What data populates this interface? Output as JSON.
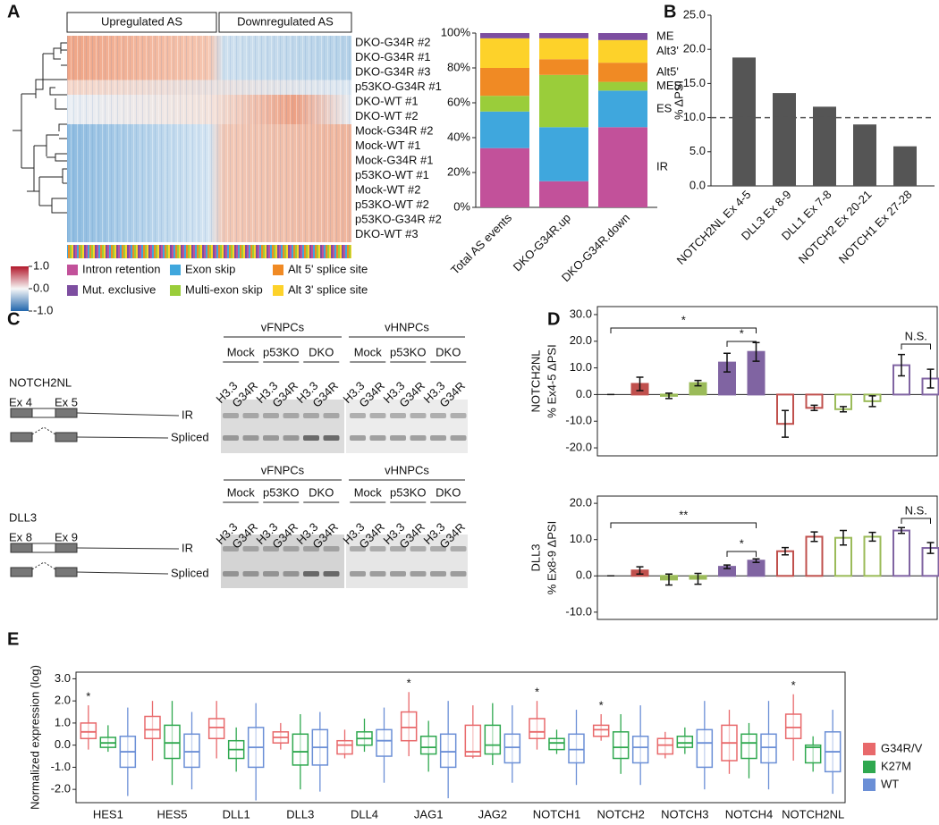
{
  "panel_labels": [
    "A",
    "B",
    "C",
    "D",
    "E"
  ],
  "heatmap": {
    "groups": [
      "Upregulated AS",
      "Downregulated AS"
    ],
    "rows": [
      "DKO-G34R #2",
      "DKO-G34R #1",
      "DKO-G34R #3",
      "p53KO-G34R #1",
      "DKO-WT #1",
      "DKO-WT #2",
      "Mock-G34R #2",
      "Mock-WT #1",
      "Mock-G34R #1",
      "p53KO-WT #1",
      "Mock-WT #2",
      "p53KO-WT #2",
      "p53KO-G34R #2",
      "DKO-WT #3"
    ],
    "colorbar_ticks": [
      {
        "value": 1,
        "label": "1.0"
      },
      {
        "value": 0,
        "label": "0.0"
      },
      {
        "value": -1,
        "label": "-1.0"
      }
    ],
    "legend": [
      {
        "name": "Intron retention",
        "color": "#c2519a"
      },
      {
        "name": "Exon skip",
        "color": "#3fa7dd"
      },
      {
        "name": "Alt 5' splice site",
        "color": "#f08a24"
      },
      {
        "name": "Mut. exclusive",
        "color": "#7d4ea0"
      },
      {
        "name": "Multi-exon skip",
        "color": "#9acd3a"
      },
      {
        "name": "Alt 3' splice site",
        "color": "#fdd22a"
      }
    ]
  },
  "gels": [
    {
      "gene": "NOTCH2NL",
      "exons": [
        "Ex 4",
        "Ex 5"
      ],
      "bands": [
        "IR",
        "Spliced"
      ],
      "cells": [
        "vFNPCs",
        "vHNPCs"
      ],
      "conditions": [
        "Mock",
        "p53KO",
        "DKO"
      ],
      "lanes": [
        "H3.3",
        "G34R"
      ]
    },
    {
      "gene": "DLL3",
      "exons": [
        "Ex 8",
        "Ex 9"
      ],
      "bands": [
        "IR",
        "Spliced"
      ],
      "cells": [
        "vFNPCs",
        "vHNPCs"
      ],
      "conditions": [
        "Mock",
        "p53KO",
        "DKO"
      ],
      "lanes": [
        "H3.3",
        "G34R"
      ]
    }
  ],
  "chart_data": [
    {
      "type": "bar",
      "stacked": true,
      "categories": [
        "Total AS events",
        "DKO-G34R.up",
        "DKO-G34R.down"
      ],
      "series": [
        {
          "name": "IR",
          "color": "#c2519a",
          "values": [
            34,
            15,
            46
          ]
        },
        {
          "name": "ES",
          "color": "#3fa7dd",
          "values": [
            21,
            31,
            21
          ]
        },
        {
          "name": "MES",
          "color": "#9acd3a",
          "values": [
            9,
            30,
            5
          ]
        },
        {
          "name": "Alt5'",
          "color": "#f08a24",
          "values": [
            16,
            9,
            11
          ]
        },
        {
          "name": "Alt3'",
          "color": "#fdd22a",
          "values": [
            17,
            12,
            13
          ]
        },
        {
          "name": "ME",
          "color": "#7d4ea0",
          "values": [
            3,
            3,
            4
          ]
        }
      ],
      "ylim": [
        0,
        100
      ],
      "yticks": [
        {
          "value": 0,
          "label": "0%"
        },
        {
          "value": 20,
          "label": "20%"
        },
        {
          "value": 40,
          "label": "40%"
        },
        {
          "value": 60,
          "label": "60%"
        },
        {
          "value": 80,
          "label": "80%"
        },
        {
          "value": 100,
          "label": "100%"
        }
      ]
    },
    {
      "type": "bar",
      "categories": [
        "NOTCH2NL Ex 4-5",
        "DLL3 Ex 8-9",
        "DLL1 Ex 7-8",
        "NOTCH2 Ex 20-21",
        "NOTCH1 Ex 27-28"
      ],
      "values": [
        18.8,
        13.6,
        11.6,
        9.0,
        5.8
      ],
      "color": "#555555",
      "ylim": [
        0,
        25
      ],
      "yticks": [
        {
          "value": 0,
          "label": "0.0"
        },
        {
          "value": 5,
          "label": "5.0"
        },
        {
          "value": 10,
          "label": "10.0"
        },
        {
          "value": 15,
          "label": "15.0"
        },
        {
          "value": 20,
          "label": "20.0"
        },
        {
          "value": 25,
          "label": "25.0"
        }
      ],
      "ylabel": "% ΔPSI",
      "reference_line": 10
    },
    {
      "type": "bar",
      "ylabel": [
        "NOTCH2NL",
        "% Ex4-5 ΔPSI"
      ],
      "values": [
        0,
        4,
        -0.5,
        4.3,
        12,
        16,
        -11,
        -5,
        -5.5,
        -2.5,
        11,
        6
      ],
      "errors": [
        0,
        2.5,
        1,
        1,
        3.5,
        3.5,
        5,
        1,
        1,
        2,
        4,
        3.5
      ],
      "colors": [
        "#c0504d",
        "#c0504d",
        "#9bbb59",
        "#9bbb59",
        "#8064a2",
        "#8064a2",
        "#c0504d",
        "#c0504d",
        "#9bbb59",
        "#9bbb59",
        "#8064a2",
        "#8064a2"
      ],
      "filled": [
        true,
        true,
        true,
        true,
        true,
        true,
        false,
        false,
        false,
        false,
        false,
        false
      ],
      "ylim": [
        -23,
        33
      ],
      "yticks": [
        {
          "value": -20,
          "label": "-20.0"
        },
        {
          "value": -10,
          "label": "-10.0"
        },
        {
          "value": 0,
          "label": "0.0"
        },
        {
          "value": 10,
          "label": "10.0"
        },
        {
          "value": 20,
          "label": "20.0"
        },
        {
          "value": 30,
          "label": "30.0"
        }
      ],
      "annotations": [
        "*",
        "*",
        "N.S."
      ]
    },
    {
      "type": "bar",
      "ylabel": [
        "DLL3",
        "% Ex8-9 ΔPSI"
      ],
      "values": [
        0,
        1.5,
        -1,
        -0.8,
        2.5,
        4.2,
        6.8,
        10.8,
        10.5,
        10.8,
        12.5,
        7.7
      ],
      "errors": [
        0,
        1,
        1.5,
        1.5,
        0.5,
        0.5,
        1,
        1.3,
        2,
        1.2,
        0.8,
        1.5
      ],
      "colors": [
        "#c0504d",
        "#c0504d",
        "#9bbb59",
        "#9bbb59",
        "#8064a2",
        "#8064a2",
        "#c0504d",
        "#c0504d",
        "#9bbb59",
        "#9bbb59",
        "#8064a2",
        "#8064a2"
      ],
      "filled": [
        true,
        true,
        true,
        true,
        true,
        true,
        false,
        false,
        false,
        false,
        false,
        false
      ],
      "ylim": [
        -12,
        22
      ],
      "yticks": [
        {
          "value": -10,
          "label": "-10.0"
        },
        {
          "value": 0,
          "label": "0.0"
        },
        {
          "value": 10,
          "label": "10.0"
        },
        {
          "value": 20,
          "label": "20.0"
        }
      ],
      "annotations": [
        "**",
        "*",
        "N.S."
      ]
    },
    {
      "type": "box",
      "ylabel": "Normalized expression (log)",
      "categories": [
        "HES1",
        "HES5",
        "DLL1",
        "DLL3",
        "DLL4",
        "JAG1",
        "JAG2",
        "NOTCH1",
        "NOTCH2",
        "NOTCH3",
        "NOTCH4",
        "NOTCH2NL"
      ],
      "significance": [
        "*",
        null,
        null,
        null,
        null,
        "*",
        null,
        "*",
        "*",
        null,
        null,
        "*"
      ],
      "series": [
        {
          "name": "G34R/V",
          "color": "#e8696b",
          "boxes": [
            [
              -0.2,
              0.3,
              0.6,
              1.0,
              1.8
            ],
            [
              -0.7,
              0.3,
              0.7,
              1.3,
              2.0
            ],
            [
              -0.6,
              0.3,
              0.8,
              1.2,
              2.0
            ],
            [
              -0.2,
              0.1,
              0.35,
              0.6,
              1.0
            ],
            [
              -0.6,
              -0.4,
              0.0,
              0.2,
              0.7
            ],
            [
              -0.5,
              0.2,
              0.8,
              1.5,
              2.4
            ],
            [
              -0.6,
              -0.5,
              -0.3,
              0.9,
              1.8
            ],
            [
              -0.2,
              0.3,
              0.6,
              1.2,
              2.0
            ],
            [
              0.2,
              0.4,
              0.7,
              0.9,
              1.4
            ],
            [
              -0.6,
              -0.4,
              0.0,
              0.3,
              0.6
            ],
            [
              -1.3,
              -0.7,
              0.1,
              0.9,
              1.6
            ],
            [
              -0.7,
              0.3,
              0.8,
              1.4,
              2.3
            ]
          ]
        },
        {
          "name": "K27M",
          "color": "#2fa84f",
          "boxes": [
            [
              -0.3,
              -0.1,
              0.1,
              0.35,
              0.9
            ],
            [
              -1.8,
              -0.6,
              0.1,
              0.9,
              2.0
            ],
            [
              -1.2,
              -0.6,
              -0.2,
              0.2,
              0.8
            ],
            [
              -2.0,
              -0.9,
              -0.3,
              0.5,
              1.4
            ],
            [
              -0.3,
              0.0,
              0.3,
              0.6,
              1.2
            ],
            [
              -1.2,
              -0.4,
              -0.1,
              0.4,
              1.1
            ],
            [
              -0.9,
              -0.4,
              0.0,
              0.9,
              1.9
            ],
            [
              -0.4,
              -0.2,
              0.1,
              0.3,
              0.7
            ],
            [
              -1.3,
              -0.6,
              -0.1,
              0.6,
              1.4
            ],
            [
              -0.4,
              -0.1,
              0.1,
              0.4,
              0.8
            ],
            [
              -1.5,
              -0.6,
              0.1,
              0.5,
              1.0
            ],
            [
              -1.2,
              -0.8,
              -0.1,
              0.0,
              0.4
            ]
          ]
        },
        {
          "name": "WT",
          "color": "#6b8fd6",
          "boxes": [
            [
              -2.3,
              -1.0,
              -0.3,
              0.4,
              1.7
            ],
            [
              -2.0,
              -1.0,
              -0.3,
              0.5,
              1.5
            ],
            [
              -2.5,
              -1.0,
              -0.1,
              0.8,
              1.9
            ],
            [
              -2.1,
              -0.9,
              -0.1,
              0.7,
              1.5
            ],
            [
              -1.7,
              -0.5,
              0.2,
              0.7,
              1.7
            ],
            [
              -2.4,
              -1.0,
              -0.3,
              0.5,
              2.0
            ],
            [
              -1.7,
              -0.8,
              -0.1,
              0.5,
              1.8
            ],
            [
              -1.8,
              -0.8,
              -0.2,
              0.5,
              1.6
            ],
            [
              -1.8,
              -0.8,
              -0.1,
              0.4,
              1.8
            ],
            [
              -2.0,
              -1.0,
              0.1,
              0.7,
              2.0
            ],
            [
              -2.0,
              -0.8,
              -0.1,
              0.5,
              2.0
            ],
            [
              -2.2,
              -1.2,
              -0.3,
              0.6,
              1.6
            ]
          ]
        }
      ],
      "ylim": [
        -2.6,
        3.3
      ],
      "yticks": [
        {
          "value": -2,
          "label": "-2.0"
        },
        {
          "value": -1,
          "label": "-1.0"
        },
        {
          "value": 0,
          "label": "0.0"
        },
        {
          "value": 1,
          "label": "1.0"
        },
        {
          "value": 2,
          "label": "2.0"
        },
        {
          "value": 3,
          "label": "3.0"
        }
      ]
    }
  ]
}
